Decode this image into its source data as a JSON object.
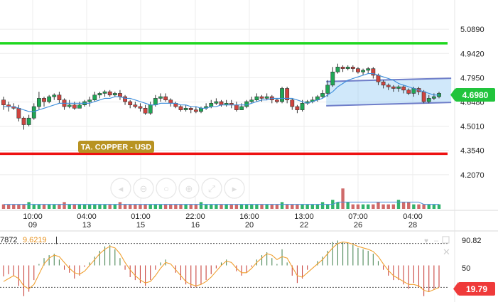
{
  "chart_data": [
    {
      "type": "candlestick",
      "title": "",
      "symbol_label": "TA. COPPER - USD",
      "y_ticks": [
        "5.0890",
        "4.9420",
        "4.7950",
        "4.6480",
        "4.5010",
        "4.3540",
        "4.2070"
      ],
      "ylim": [
        4.12,
        5.15
      ],
      "last_price": "4.6980",
      "x_ticks": [
        {
          "time": "10:00",
          "date": "09"
        },
        {
          "time": "04:00",
          "date": "13"
        },
        {
          "time": "01:00",
          "date": "15"
        },
        {
          "time": "22:00",
          "date": "16"
        },
        {
          "time": "16:00",
          "date": "20"
        },
        {
          "time": "13:00",
          "date": "22"
        },
        {
          "time": "07:00",
          "date": "26"
        },
        {
          "time": "04:00",
          "date": "28"
        }
      ],
      "horizontal_lines": [
        {
          "name": "resistance",
          "value": 5.004,
          "color": "#1fd81f"
        },
        {
          "name": "support",
          "value": 4.334,
          "color": "#ee1111"
        }
      ],
      "channel": {
        "start_index": 64,
        "end_index": 87,
        "top": [
          4.772,
          4.792
        ],
        "bottom": [
          4.625,
          4.645
        ]
      },
      "grid": true,
      "candles": [
        [
          4.66,
          4.63,
          4.68,
          4.6
        ],
        [
          4.63,
          4.62,
          4.65,
          4.59
        ],
        [
          4.62,
          4.61,
          4.64,
          4.6
        ],
        [
          4.61,
          4.55,
          4.63,
          4.53
        ],
        [
          4.55,
          4.51,
          4.56,
          4.48
        ],
        [
          4.51,
          4.55,
          4.57,
          4.5
        ],
        [
          4.55,
          4.62,
          4.64,
          4.54
        ],
        [
          4.62,
          4.67,
          4.71,
          4.6
        ],
        [
          4.67,
          4.65,
          4.68,
          4.62
        ],
        [
          4.65,
          4.68,
          4.69,
          4.64
        ],
        [
          4.68,
          4.69,
          4.7,
          4.66
        ],
        [
          4.69,
          4.66,
          4.71,
          4.64
        ],
        [
          4.66,
          4.62,
          4.67,
          4.6
        ],
        [
          4.62,
          4.63,
          4.66,
          4.61
        ],
        [
          4.63,
          4.61,
          4.65,
          4.6
        ],
        [
          4.61,
          4.63,
          4.65,
          4.61
        ],
        [
          4.63,
          4.65,
          4.66,
          4.62
        ],
        [
          4.65,
          4.66,
          4.68,
          4.62
        ],
        [
          4.66,
          4.69,
          4.71,
          4.65
        ],
        [
          4.69,
          4.7,
          4.71,
          4.67
        ],
        [
          4.7,
          4.71,
          4.72,
          4.68
        ],
        [
          4.71,
          4.69,
          4.72,
          4.68
        ],
        [
          4.69,
          4.7,
          4.71,
          4.68
        ],
        [
          4.7,
          4.68,
          4.72,
          4.66
        ],
        [
          4.68,
          4.65,
          4.69,
          4.63
        ],
        [
          4.65,
          4.63,
          4.66,
          4.61
        ],
        [
          4.63,
          4.62,
          4.65,
          4.61
        ],
        [
          4.62,
          4.61,
          4.64,
          4.59
        ],
        [
          4.61,
          4.58,
          4.63,
          4.57
        ],
        [
          4.58,
          4.63,
          4.65,
          4.57
        ],
        [
          4.63,
          4.67,
          4.69,
          4.62
        ],
        [
          4.67,
          4.68,
          4.7,
          4.65
        ],
        [
          4.68,
          4.66,
          4.7,
          4.65
        ],
        [
          4.66,
          4.64,
          4.67,
          4.62
        ],
        [
          4.64,
          4.62,
          4.65,
          4.61
        ],
        [
          4.62,
          4.6,
          4.63,
          4.59
        ],
        [
          4.6,
          4.61,
          4.63,
          4.59
        ],
        [
          4.61,
          4.6,
          4.62,
          4.58
        ],
        [
          4.6,
          4.59,
          4.62,
          4.58
        ],
        [
          4.59,
          4.61,
          4.62,
          4.58
        ],
        [
          4.61,
          4.62,
          4.64,
          4.6
        ],
        [
          4.62,
          4.64,
          4.66,
          4.61
        ],
        [
          4.64,
          4.65,
          4.67,
          4.63
        ],
        [
          4.65,
          4.63,
          4.66,
          4.62
        ],
        [
          4.63,
          4.64,
          4.66,
          4.62
        ],
        [
          4.64,
          4.63,
          4.66,
          4.61
        ],
        [
          4.63,
          4.6,
          4.65,
          4.59
        ],
        [
          4.6,
          4.62,
          4.64,
          4.6
        ],
        [
          4.62,
          4.65,
          4.66,
          4.61
        ],
        [
          4.65,
          4.66,
          4.68,
          4.64
        ],
        [
          4.66,
          4.68,
          4.7,
          4.65
        ],
        [
          4.68,
          4.67,
          4.69,
          4.65
        ],
        [
          4.67,
          4.68,
          4.7,
          4.66
        ],
        [
          4.68,
          4.66,
          4.69,
          4.64
        ],
        [
          4.66,
          4.65,
          4.67,
          4.64
        ],
        [
          4.65,
          4.73,
          4.74,
          4.64
        ],
        [
          4.73,
          4.66,
          4.74,
          4.64
        ],
        [
          4.66,
          4.62,
          4.67,
          4.6
        ],
        [
          4.62,
          4.6,
          4.63,
          4.58
        ],
        [
          4.6,
          4.64,
          4.66,
          4.59
        ],
        [
          4.64,
          4.65,
          4.66,
          4.63
        ],
        [
          4.65,
          4.66,
          4.68,
          4.64
        ],
        [
          4.66,
          4.68,
          4.69,
          4.65
        ],
        [
          4.68,
          4.7,
          4.72,
          4.67
        ],
        [
          4.7,
          4.75,
          4.78,
          4.68
        ],
        [
          4.75,
          4.83,
          4.86,
          4.74
        ],
        [
          4.83,
          4.86,
          4.88,
          4.82
        ],
        [
          4.86,
          4.85,
          4.87,
          4.83
        ],
        [
          4.85,
          4.86,
          4.87,
          4.84
        ],
        [
          4.86,
          4.85,
          4.87,
          4.83
        ],
        [
          4.85,
          4.83,
          4.86,
          4.82
        ],
        [
          4.83,
          4.84,
          4.85,
          4.81
        ],
        [
          4.84,
          4.85,
          4.86,
          4.82
        ],
        [
          4.85,
          4.81,
          4.86,
          4.79
        ],
        [
          4.81,
          4.77,
          4.82,
          4.75
        ],
        [
          4.77,
          4.75,
          4.78,
          4.73
        ],
        [
          4.75,
          4.74,
          4.76,
          4.72
        ],
        [
          4.74,
          4.73,
          4.75,
          4.71
        ],
        [
          4.73,
          4.74,
          4.75,
          4.71
        ],
        [
          4.74,
          4.72,
          4.75,
          4.7
        ],
        [
          4.72,
          4.7,
          4.73,
          4.69
        ],
        [
          4.7,
          4.73,
          4.74,
          4.68
        ],
        [
          4.73,
          4.71,
          4.74,
          4.69
        ],
        [
          4.71,
          4.65,
          4.72,
          4.64
        ],
        [
          4.65,
          4.67,
          4.69,
          4.64
        ],
        [
          4.67,
          4.68,
          4.7,
          4.66
        ],
        [
          4.68,
          4.7,
          4.71,
          4.67
        ]
      ],
      "ma": [
        4.62,
        4.62,
        4.62,
        4.61,
        4.6,
        4.59,
        4.59,
        4.6,
        4.61,
        4.62,
        4.63,
        4.64,
        4.64,
        4.64,
        4.64,
        4.64,
        4.64,
        4.64,
        4.65,
        4.66,
        4.67,
        4.67,
        4.68,
        4.68,
        4.67,
        4.67,
        4.66,
        4.65,
        4.64,
        4.63,
        4.63,
        4.64,
        4.64,
        4.64,
        4.64,
        4.63,
        4.63,
        4.62,
        4.62,
        4.61,
        4.61,
        4.62,
        4.62,
        4.63,
        4.63,
        4.63,
        4.63,
        4.63,
        4.63,
        4.64,
        4.65,
        4.66,
        4.66,
        4.67,
        4.67,
        4.67,
        4.67,
        4.67,
        4.66,
        4.65,
        4.64,
        4.65,
        4.66,
        4.67,
        4.69,
        4.71,
        4.74,
        4.76,
        4.78,
        4.79,
        4.8,
        4.81,
        4.82,
        4.82,
        4.81,
        4.8,
        4.79,
        4.78,
        4.76,
        4.75,
        4.74,
        4.73,
        4.72,
        4.71,
        4.7,
        4.69,
        4.69
      ],
      "volume": [
        2,
        2,
        2,
        2,
        2,
        3,
        2,
        2,
        2,
        2,
        2,
        2,
        3,
        2,
        2,
        2,
        2,
        2,
        2,
        2,
        2,
        2,
        2,
        3,
        2,
        2,
        2,
        2,
        2,
        2,
        2,
        2,
        2,
        2,
        2,
        2,
        2,
        2,
        2,
        3,
        2,
        2,
        2,
        2,
        2,
        2,
        2,
        2,
        2,
        2,
        2,
        2,
        2,
        2,
        2,
        3,
        2,
        2,
        2,
        2,
        2,
        2,
        2,
        3,
        2,
        4,
        3,
        9,
        3,
        2,
        2,
        2,
        2,
        2,
        3,
        2,
        2,
        2,
        4,
        3,
        3,
        2,
        2,
        2,
        2,
        2,
        2
      ],
      "volume_avg": [
        2,
        2,
        2,
        2,
        2,
        2,
        2,
        2,
        2,
        2,
        2,
        2,
        2,
        2,
        2,
        2,
        2,
        2,
        2,
        2,
        2,
        2,
        2,
        2,
        2,
        2,
        2,
        2,
        2,
        2,
        2,
        2,
        2,
        2,
        2,
        2,
        2,
        2,
        2,
        2,
        2,
        2,
        2,
        2,
        2,
        2,
        2,
        2,
        2,
        2,
        2,
        2,
        2,
        2,
        2,
        2,
        2,
        2,
        2,
        2,
        2,
        2,
        2,
        2,
        2,
        2,
        3,
        3,
        3,
        3,
        3,
        3,
        3,
        3,
        3,
        3,
        3,
        3,
        3,
        3,
        3,
        3,
        3,
        2,
        2,
        2,
        2
      ]
    },
    {
      "type": "oscillator",
      "values_text": [
        "7872",
        "9.6219"
      ],
      "y_ticks": [
        "90.82",
        "50"
      ],
      "ylim": [
        0,
        100
      ],
      "levels": [
        80,
        20
      ],
      "last_value": "19.79",
      "histogram": [
        35,
        38,
        36,
        22,
        8,
        14,
        30,
        52,
        60,
        64,
        66,
        58,
        44,
        40,
        32,
        36,
        48,
        54,
        62,
        70,
        76,
        78,
        72,
        60,
        44,
        34,
        30,
        26,
        22,
        30,
        44,
        54,
        58,
        50,
        40,
        30,
        24,
        20,
        20,
        24,
        30,
        38,
        46,
        54,
        58,
        50,
        42,
        36,
        40,
        48,
        58,
        64,
        68,
        60,
        52,
        72,
        54,
        36,
        26,
        32,
        44,
        50,
        56,
        62,
        70,
        82,
        84,
        82,
        80,
        78,
        74,
        72,
        70,
        66,
        56,
        44,
        36,
        30,
        30,
        24,
        18,
        26,
        20,
        8,
        14,
        18,
        20
      ],
      "signal": [
        28,
        32,
        36,
        32,
        22,
        18,
        24,
        38,
        52,
        60,
        64,
        62,
        54,
        46,
        40,
        38,
        42,
        50,
        58,
        66,
        72,
        76,
        74,
        66,
        54,
        44,
        36,
        30,
        26,
        28,
        36,
        46,
        54,
        52,
        44,
        36,
        28,
        24,
        22,
        24,
        28,
        34,
        42,
        50,
        56,
        54,
        46,
        40,
        40,
        46,
        54,
        60,
        66,
        64,
        58,
        62,
        60,
        48,
        36,
        34,
        40,
        46,
        52,
        58,
        66,
        74,
        80,
        82,
        81,
        79,
        76,
        74,
        72,
        69,
        62,
        52,
        43,
        36,
        32,
        28,
        24,
        24,
        22,
        16,
        14,
        17,
        19.79
      ]
    }
  ],
  "toolbar": {
    "icons": [
      "scroll-left-icon",
      "zoom-out-icon",
      "zoom-reset-icon",
      "zoom-in-icon",
      "zoom-fit-icon",
      "scroll-right-icon"
    ]
  }
}
